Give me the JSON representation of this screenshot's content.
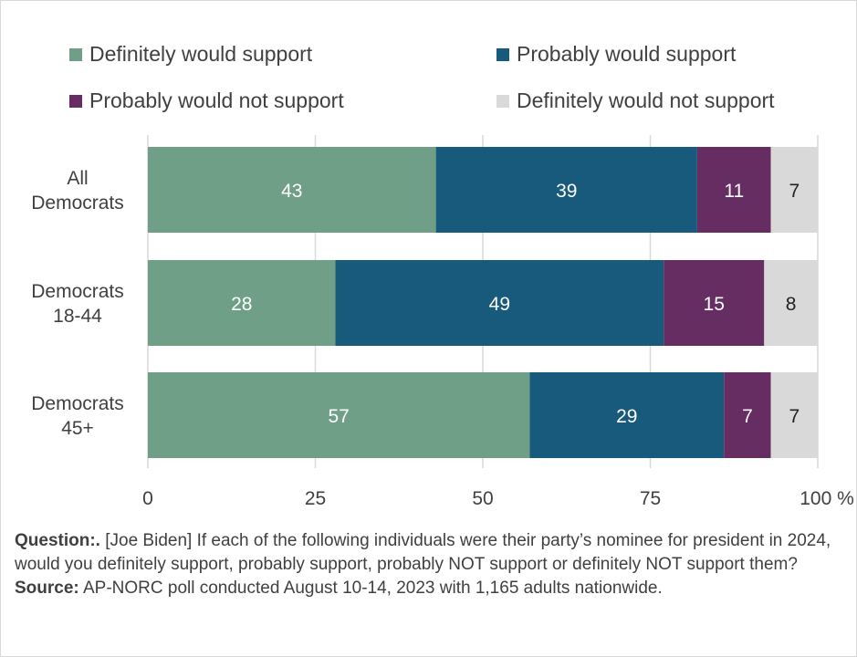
{
  "chart_data": {
    "type": "bar",
    "orientation": "horizontal",
    "stacked": true,
    "categories": [
      "All Democrats",
      "Democrats 18-44",
      "Democrats 45+"
    ],
    "category_lines": [
      [
        "All",
        "Democrats"
      ],
      [
        "Democrats",
        "18-44"
      ],
      [
        "Democrats",
        "45+"
      ]
    ],
    "series": [
      {
        "name": "Definitely would support",
        "color": "#6fa087",
        "label_color": "#ffffff",
        "values": [
          43,
          28,
          57
        ]
      },
      {
        "name": "Probably would support",
        "color": "#175a7b",
        "label_color": "#ffffff",
        "values": [
          39,
          49,
          29
        ]
      },
      {
        "name": "Probably would not support",
        "color": "#662d62",
        "label_color": "#ffffff",
        "values": [
          11,
          15,
          7
        ]
      },
      {
        "name": "Definitely would not support",
        "color": "#d9d9d9",
        "label_color": "#222222",
        "values": [
          7,
          8,
          7
        ]
      }
    ],
    "xlim": [
      0,
      100
    ],
    "xticks": [
      "0",
      "25",
      "50",
      "75",
      "100"
    ],
    "xtick_values": [
      0,
      25,
      50,
      75,
      100
    ],
    "x_unit": "%",
    "grid": "vertical",
    "legend_position": "top"
  },
  "footer": {
    "question_label": "Question:.",
    "question_text": " [Joe Biden] If each of the following individuals were their party’s nominee for president in 2024, would you definitely support, probably support, probably NOT support or definitely NOT support them?",
    "source_label": "Source:",
    "source_text": " AP-NORC poll conducted August 10-14, 2023 with 1,165 adults nationwide."
  }
}
